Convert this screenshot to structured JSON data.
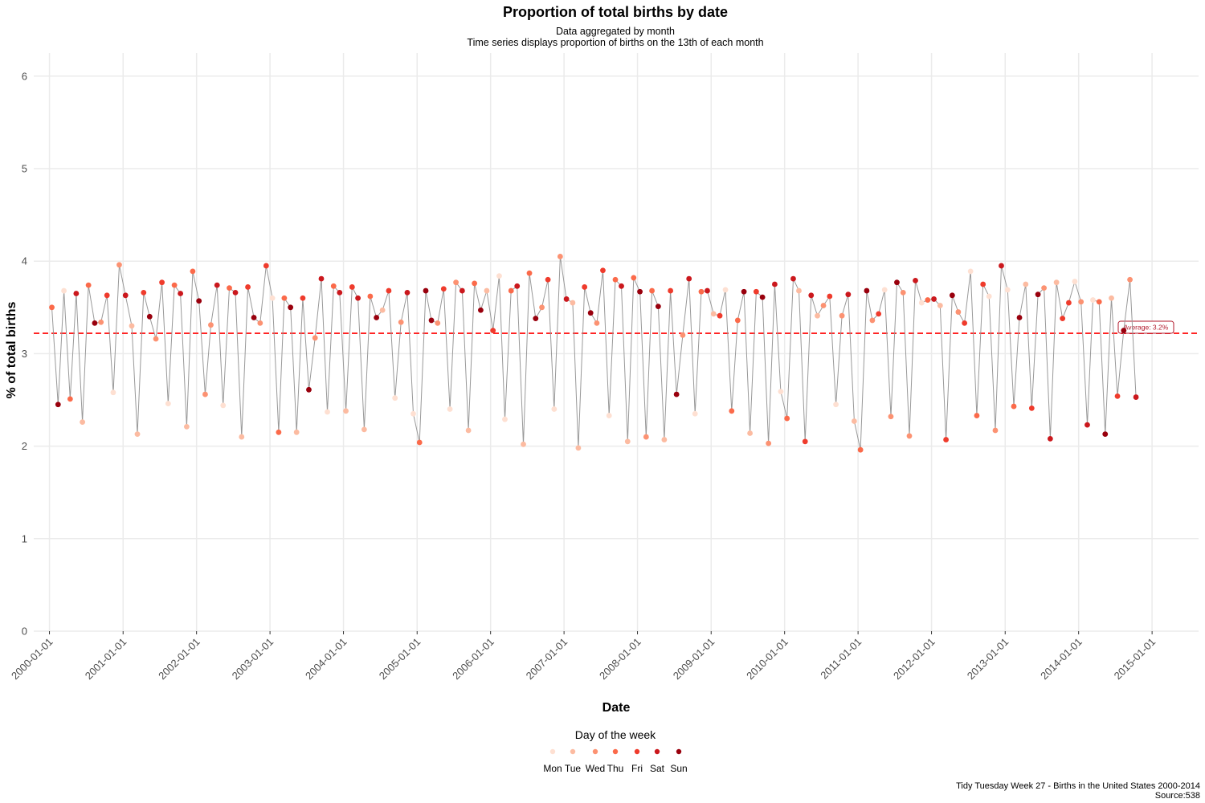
{
  "chart_data": {
    "type": "scatter",
    "title": "Proportion of total births by date",
    "subtitle": [
      "Data aggregated by month",
      "Time series displays proportion of births on the 13th of each month"
    ],
    "xlabel": "Date",
    "ylabel": "% of total births",
    "x_ticks": [
      "2000-01-01",
      "2001-01-01",
      "2002-01-01",
      "2003-01-01",
      "2004-01-01",
      "2005-01-01",
      "2006-01-01",
      "2007-01-01",
      "2008-01-01",
      "2009-01-01",
      "2010-01-01",
      "2011-01-01",
      "2012-01-01",
      "2013-01-01",
      "2014-01-01",
      "2015-01-01"
    ],
    "y_ticks": [
      "0",
      "1",
      "2",
      "3",
      "4",
      "5",
      "6"
    ],
    "ylim": [
      0,
      6.25
    ],
    "xlim": [
      "1999-10-15",
      "2015-08-20"
    ],
    "grid": true,
    "reference_line": {
      "value": 3.22,
      "label": "Average: 3.2%",
      "color": "#ff2020"
    },
    "legend": {
      "title": "Day of the week",
      "placement": "bottom",
      "entries": [
        {
          "label": "Mon",
          "color": "#fee0d2"
        },
        {
          "label": "Tue",
          "color": "#fcbba1"
        },
        {
          "label": "Wed",
          "color": "#fc9272"
        },
        {
          "label": "Thu",
          "color": "#fb6a4a"
        },
        {
          "label": "Fri",
          "color": "#ef3b2c"
        },
        {
          "label": "Sat",
          "color": "#cb181d"
        },
        {
          "label": "Sun",
          "color": "#99000d"
        }
      ]
    },
    "line_color": "#999999",
    "start_month": "2000-01",
    "day_of_week": [
      "Thu",
      "Sun",
      "Mon",
      "Thu",
      "Sat",
      "Tue",
      "Thu",
      "Sun",
      "Wed",
      "Fri",
      "Mon",
      "Wed",
      "Sat",
      "Tue",
      "Tue",
      "Fri",
      "Sun",
      "Wed",
      "Fri",
      "Mon",
      "Thu",
      "Sat",
      "Tue",
      "Thu",
      "Sun",
      "Wed",
      "Wed",
      "Sat",
      "Mon",
      "Thu",
      "Sat",
      "Tue",
      "Fri",
      "Sun",
      "Wed",
      "Fri",
      "Mon",
      "Thu",
      "Thu",
      "Sun",
      "Tue",
      "Fri",
      "Sun",
      "Wed",
      "Sat",
      "Mon",
      "Thu",
      "Sat",
      "Tue",
      "Fri",
      "Sat",
      "Tue",
      "Thu",
      "Sun",
      "Tue",
      "Fri",
      "Mon",
      "Wed",
      "Sat",
      "Mon",
      "Thu",
      "Sun",
      "Sun",
      "Wed",
      "Fri",
      "Mon",
      "Wed",
      "Sat",
      "Tue",
      "Thu",
      "Sun",
      "Tue",
      "Fri",
      "Mon",
      "Mon",
      "Thu",
      "Sat",
      "Tue",
      "Thu",
      "Sun",
      "Wed",
      "Fri",
      "Mon",
      "Wed",
      "Sat",
      "Tue",
      "Tue",
      "Fri",
      "Sun",
      "Wed",
      "Fri",
      "Mon",
      "Thu",
      "Sat",
      "Tue",
      "Thu",
      "Sun",
      "Wed",
      "Thu",
      "Sun",
      "Tue",
      "Fri",
      "Sun",
      "Wed",
      "Sat",
      "Mon",
      "Thu",
      "Sat",
      "Tue",
      "Fri",
      "Mon",
      "Thu",
      "Thu",
      "Sun",
      "Tue",
      "Fri",
      "Sun",
      "Wed",
      "Sat",
      "Mon",
      "Thu",
      "Sat",
      "Tue",
      "Fri",
      "Sat",
      "Tue",
      "Wed",
      "Fri",
      "Mon",
      "Wed",
      "Sat",
      "Tue",
      "Thu",
      "Sun",
      "Wed",
      "Fri",
      "Mon",
      "Wed",
      "Sun",
      "Wed",
      "Wed",
      "Sat",
      "Mon",
      "Thu",
      "Sat",
      "Tue",
      "Fri",
      "Sun",
      "Wed",
      "Fri",
      "Mon",
      "Thu",
      "Fri",
      "Mon",
      "Wed",
      "Sat",
      "Mon",
      "Thu",
      "Sun",
      "Tue",
      "Fri",
      "Sun",
      "Wed",
      "Sat",
      "Tue",
      "Fri",
      "Fri",
      "Mon",
      "Wed",
      "Sat",
      "Mon",
      "Thu",
      "Sun",
      "Tue",
      "Fri",
      "Sun",
      "Wed",
      "Sat",
      "Sun",
      "Wed",
      "Thu",
      "Sun",
      "Tue",
      "Fri",
      "Sun",
      "Wed",
      "Sat",
      "Mon",
      "Thu",
      "Sat",
      "Tue",
      "Fri"
    ],
    "values": [
      3.5,
      2.45,
      3.68,
      2.51,
      3.65,
      2.26,
      3.74,
      3.33,
      3.34,
      3.63,
      2.58,
      3.96,
      3.63,
      3.3,
      2.13,
      3.66,
      3.4,
      3.16,
      3.77,
      2.46,
      3.74,
      3.65,
      2.21,
      3.89,
      3.57,
      2.56,
      3.31,
      3.74,
      2.44,
      3.71,
      3.66,
      2.1,
      3.72,
      3.39,
      3.33,
      3.95,
      3.6,
      2.15,
      3.6,
      3.5,
      2.15,
      3.6,
      2.61,
      3.17,
      3.81,
      2.37,
      3.73,
      3.66,
      2.38,
      3.72,
      3.6,
      2.18,
      3.62,
      3.39,
      3.47,
      3.68,
      2.52,
      3.34,
      3.66,
      2.35,
      2.04,
      3.68,
      3.36,
      3.33,
      3.7,
      2.4,
      3.77,
      3.68,
      2.17,
      3.76,
      3.47,
      3.68,
      3.25,
      3.84,
      2.29,
      3.68,
      3.73,
      2.02,
      3.87,
      3.38,
      3.5,
      3.8,
      2.4,
      4.05,
      3.59,
      3.55,
      1.98,
      3.72,
      3.44,
      3.33,
      3.9,
      2.33,
      3.8,
      3.73,
      2.05,
      3.82,
      3.67,
      2.1,
      3.68,
      3.51,
      2.07,
      3.68,
      2.56,
      3.2,
      3.81,
      2.35,
      3.67,
      3.68,
      3.43,
      3.41,
      3.69,
      2.38,
      3.36,
      3.67,
      2.14,
      3.67,
      3.61,
      2.03,
      3.75,
      2.59,
      2.3,
      3.81,
      3.68,
      2.05,
      3.63,
      3.41,
      3.52,
      3.62,
      2.45,
      3.41,
      3.64,
      2.27,
      1.96,
      3.68,
      3.36,
      3.43,
      3.69,
      2.32,
      3.77,
      3.66,
      2.11,
      3.79,
      3.55,
      3.58,
      3.59,
      3.52,
      2.07,
      3.63,
      3.45,
      3.33,
      3.89,
      2.33,
      3.75,
      3.62,
      2.17,
      3.95,
      3.69,
      2.43,
      3.39,
      3.75,
      2.41,
      3.64,
      3.71,
      2.08,
      3.77,
      3.38,
      3.55,
      3.78,
      3.56,
      2.23,
      3.58,
      3.56,
      2.13,
      3.6,
      2.54,
      3.25,
      3.8,
      2.53
    ]
  },
  "caption": [
    "Tidy Tuesday Week 27 - Births in the United States 2000-2014",
    "Source:538"
  ]
}
